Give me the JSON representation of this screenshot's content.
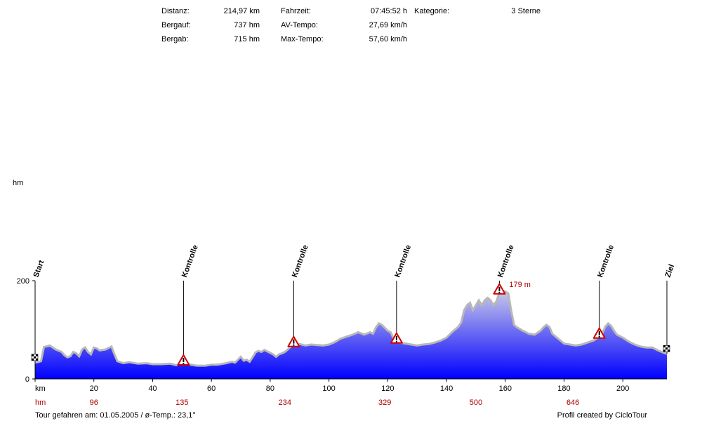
{
  "stats": {
    "col1": [
      {
        "label": "Distanz:",
        "value": "214,97 km"
      },
      {
        "label": "Bergauf:",
        "value": "737 hm"
      },
      {
        "label": "Bergab:",
        "value": "715 hm"
      }
    ],
    "col2": [
      {
        "label": "Fahrzeit:",
        "value": "07:45:52 h"
      },
      {
        "label": "AV-Tempo:",
        "value": "27,69 km/h"
      },
      {
        "label": "Max-Tempo:",
        "value": "57,60 km/h"
      }
    ],
    "col3": [
      {
        "label": "Kategorie:",
        "value": "3 Sterne"
      }
    ]
  },
  "footer": {
    "left": "Tour gefahren am: 01.05.2005  /  ø-Temp.: 23,1°",
    "right": "Profil created by CicloTour"
  },
  "colors": {
    "fill_top": "#c8c8e8",
    "fill_bottom": "#0000ff",
    "outline": "#b8b8b8",
    "accent_red": "#b00000"
  },
  "chart_data": {
    "type": "area",
    "ylabel": "hm",
    "xlabel": "km",
    "xlim": [
      0,
      215
    ],
    "ylim": [
      0,
      200
    ],
    "yticks": [
      0,
      200
    ],
    "xticks": [
      0,
      20,
      40,
      60,
      80,
      100,
      120,
      140,
      160,
      180,
      200
    ],
    "hm_row_label": "hm",
    "hm_row": [
      {
        "km": 20,
        "value": "96"
      },
      {
        "km": 50,
        "value": "135"
      },
      {
        "km": 85,
        "value": "234"
      },
      {
        "km": 119,
        "value": "329"
      },
      {
        "km": 150,
        "value": "500"
      },
      {
        "km": 183,
        "value": "646"
      }
    ],
    "max_annotation": {
      "km": 158,
      "value": 179,
      "label": "179 m"
    },
    "markers": [
      {
        "km": 0,
        "label": "Start",
        "type": "flag"
      },
      {
        "km": 50.5,
        "label": "Kontrolle",
        "type": "warning"
      },
      {
        "km": 88,
        "label": "Kontrolle",
        "type": "warning"
      },
      {
        "km": 123,
        "label": "Kontrolle",
        "type": "warning"
      },
      {
        "km": 158,
        "label": "Kontrolle",
        "type": "warning"
      },
      {
        "km": 192,
        "label": "Kontrolle",
        "type": "warning"
      },
      {
        "km": 215,
        "label": "Ziel",
        "type": "flag"
      }
    ],
    "profile": [
      [
        0,
        33
      ],
      [
        2,
        36
      ],
      [
        3,
        65
      ],
      [
        5,
        68
      ],
      [
        7,
        60
      ],
      [
        9,
        55
      ],
      [
        10,
        48
      ],
      [
        11,
        44
      ],
      [
        12,
        46
      ],
      [
        13,
        55
      ],
      [
        14,
        52
      ],
      [
        15,
        46
      ],
      [
        16,
        60
      ],
      [
        17,
        64
      ],
      [
        18,
        55
      ],
      [
        19,
        50
      ],
      [
        20,
        64
      ],
      [
        21,
        62
      ],
      [
        22,
        58
      ],
      [
        24,
        60
      ],
      [
        25,
        63
      ],
      [
        26,
        66
      ],
      [
        27,
        50
      ],
      [
        28,
        36
      ],
      [
        30,
        32
      ],
      [
        32,
        34
      ],
      [
        35,
        31
      ],
      [
        38,
        32
      ],
      [
        40,
        30
      ],
      [
        43,
        30
      ],
      [
        46,
        31
      ],
      [
        48,
        28
      ],
      [
        50,
        32
      ],
      [
        52,
        30
      ],
      [
        55,
        27
      ],
      [
        58,
        27
      ],
      [
        60,
        29
      ],
      [
        62,
        29
      ],
      [
        65,
        32
      ],
      [
        67,
        35
      ],
      [
        68,
        33
      ],
      [
        70,
        45
      ],
      [
        71,
        37
      ],
      [
        72,
        39
      ],
      [
        73,
        35
      ],
      [
        74,
        44
      ],
      [
        75,
        54
      ],
      [
        76,
        57
      ],
      [
        77,
        55
      ],
      [
        78,
        59
      ],
      [
        79,
        56
      ],
      [
        80,
        53
      ],
      [
        81,
        50
      ],
      [
        82,
        45
      ],
      [
        83,
        50
      ],
      [
        84,
        52
      ],
      [
        85,
        55
      ],
      [
        86,
        60
      ],
      [
        87,
        66
      ],
      [
        88,
        69
      ],
      [
        90,
        71
      ],
      [
        92,
        68
      ],
      [
        94,
        70
      ],
      [
        96,
        69
      ],
      [
        98,
        68
      ],
      [
        100,
        70
      ],
      [
        102,
        75
      ],
      [
        104,
        82
      ],
      [
        106,
        86
      ],
      [
        108,
        90
      ],
      [
        110,
        95
      ],
      [
        112,
        90
      ],
      [
        114,
        95
      ],
      [
        115,
        92
      ],
      [
        116,
        105
      ],
      [
        117,
        113
      ],
      [
        118,
        110
      ],
      [
        119,
        104
      ],
      [
        120,
        98
      ],
      [
        121,
        95
      ],
      [
        122,
        82
      ],
      [
        123,
        76
      ],
      [
        124,
        74
      ],
      [
        126,
        72
      ],
      [
        128,
        70
      ],
      [
        130,
        68
      ],
      [
        132,
        70
      ],
      [
        134,
        71
      ],
      [
        136,
        74
      ],
      [
        138,
        78
      ],
      [
        140,
        84
      ],
      [
        142,
        96
      ],
      [
        144,
        106
      ],
      [
        145,
        115
      ],
      [
        146,
        140
      ],
      [
        147,
        150
      ],
      [
        148,
        155
      ],
      [
        149,
        140
      ],
      [
        150,
        150
      ],
      [
        151,
        160
      ],
      [
        152,
        150
      ],
      [
        153,
        160
      ],
      [
        154,
        165
      ],
      [
        155,
        160
      ],
      [
        156,
        150
      ],
      [
        157,
        158
      ],
      [
        158,
        176
      ],
      [
        159,
        179
      ],
      [
        160,
        178
      ],
      [
        161,
        174
      ],
      [
        162,
        140
      ],
      [
        163,
        110
      ],
      [
        164,
        105
      ],
      [
        166,
        98
      ],
      [
        168,
        92
      ],
      [
        170,
        90
      ],
      [
        172,
        98
      ],
      [
        173,
        105
      ],
      [
        174,
        110
      ],
      [
        175,
        106
      ],
      [
        176,
        92
      ],
      [
        178,
        82
      ],
      [
        180,
        72
      ],
      [
        182,
        70
      ],
      [
        184,
        68
      ],
      [
        186,
        70
      ],
      [
        188,
        74
      ],
      [
        190,
        78
      ],
      [
        192,
        86
      ],
      [
        193,
        92
      ],
      [
        194,
        106
      ],
      [
        195,
        113
      ],
      [
        196,
        108
      ],
      [
        197,
        98
      ],
      [
        198,
        90
      ],
      [
        200,
        84
      ],
      [
        202,
        76
      ],
      [
        204,
        70
      ],
      [
        206,
        66
      ],
      [
        208,
        64
      ],
      [
        210,
        64
      ],
      [
        212,
        58
      ],
      [
        214,
        53
      ],
      [
        215,
        51
      ]
    ]
  }
}
